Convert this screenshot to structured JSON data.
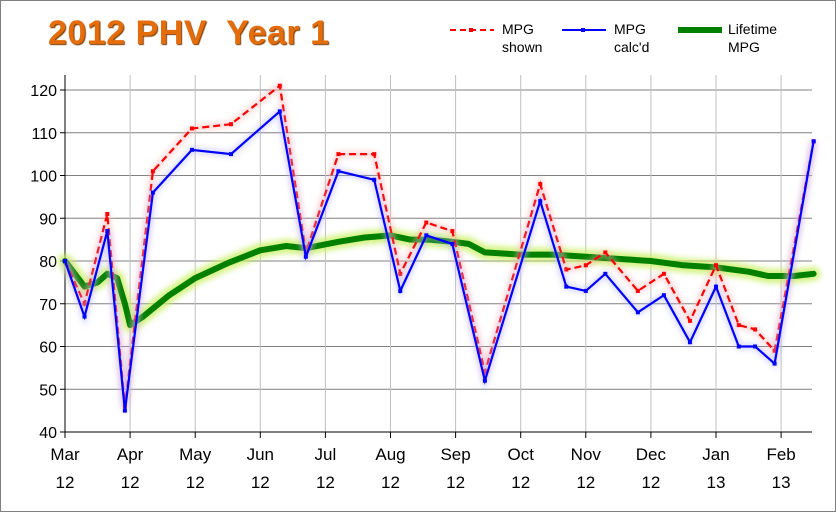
{
  "chart_data": {
    "type": "line",
    "title": "2012 PHV  Year 1",
    "xlabel": "",
    "ylabel": "",
    "ylim": [
      40,
      120
    ],
    "yticks": [
      40,
      50,
      60,
      70,
      80,
      90,
      100,
      110,
      120
    ],
    "grid": true,
    "legend_position": "top-right",
    "x_tick_labels": [
      {
        "month": "Mar",
        "year": "12"
      },
      {
        "month": "Apr",
        "year": "12"
      },
      {
        "month": "May",
        "year": "12"
      },
      {
        "month": "Jun",
        "year": "12"
      },
      {
        "month": "Jul",
        "year": "12"
      },
      {
        "month": "Aug",
        "year": "12"
      },
      {
        "month": "Sep",
        "year": "12"
      },
      {
        "month": "Oct",
        "year": "12"
      },
      {
        "month": "Nov",
        "year": "12"
      },
      {
        "month": "Dec",
        "year": "12"
      },
      {
        "month": "Jan",
        "year": "13"
      },
      {
        "month": "Feb",
        "year": "13"
      }
    ],
    "x_unit": "months since Mar 2012",
    "xlim": [
      0,
      11.5
    ],
    "series": [
      {
        "name": "MPG shown",
        "legend_label_lines": [
          "MPG",
          "shown"
        ],
        "color": "#ff0000",
        "style": "dashed",
        "x": [
          0,
          0.3,
          0.65,
          0.92,
          1.35,
          1.95,
          2.55,
          3.3,
          3.7,
          4.2,
          4.75,
          5.15,
          5.55,
          5.95,
          6.45,
          7.3,
          7.7,
          8.0,
          8.3,
          8.8,
          9.2,
          9.6,
          10.0,
          10.35,
          10.6,
          10.9,
          11.5
        ],
        "values": [
          80,
          70,
          91,
          46,
          101,
          111,
          112,
          121,
          82,
          105,
          105,
          77,
          89,
          87,
          54,
          98,
          78,
          79,
          82,
          73,
          77,
          66,
          79,
          65,
          64,
          59,
          108
        ]
      },
      {
        "name": "MPG calc'd",
        "legend_label_lines": [
          "MPG",
          "calc'd"
        ],
        "color": "#0000ff",
        "style": "solid-markers",
        "x": [
          0,
          0.3,
          0.65,
          0.92,
          1.35,
          1.95,
          2.55,
          3.3,
          3.7,
          4.2,
          4.75,
          5.15,
          5.55,
          5.95,
          6.45,
          7.3,
          7.7,
          8.0,
          8.3,
          8.8,
          9.2,
          9.6,
          10.0,
          10.35,
          10.6,
          10.9,
          11.5
        ],
        "values": [
          80,
          67,
          87,
          45,
          96,
          106,
          105,
          115,
          81,
          101,
          99,
          73,
          86,
          84,
          52,
          94,
          74,
          73,
          77,
          68,
          72,
          61,
          74,
          60,
          60,
          56,
          108
        ]
      },
      {
        "name": "Lifetime MPG",
        "legend_label_lines": [
          "Lifetime",
          "MPG"
        ],
        "color": "#008000",
        "style": "thick-glow",
        "x": [
          0,
          0.15,
          0.3,
          0.5,
          0.65,
          0.8,
          0.92,
          1.0,
          1.2,
          1.6,
          2.0,
          2.5,
          3.0,
          3.4,
          3.7,
          4.2,
          4.6,
          5.0,
          5.3,
          5.6,
          5.95,
          6.2,
          6.45,
          7.0,
          7.5,
          8.0,
          8.5,
          9.0,
          9.5,
          10.0,
          10.5,
          10.8,
          11.2,
          11.5
        ],
        "values": [
          80,
          77,
          74,
          75,
          77,
          76,
          70,
          65,
          67,
          72,
          76,
          79.5,
          82.5,
          83.5,
          83,
          84.5,
          85.5,
          86,
          85,
          85,
          84.5,
          84,
          82,
          81.5,
          81.5,
          81,
          80.5,
          80,
          79,
          78.5,
          77.5,
          76.5,
          76.5,
          77
        ]
      }
    ]
  }
}
